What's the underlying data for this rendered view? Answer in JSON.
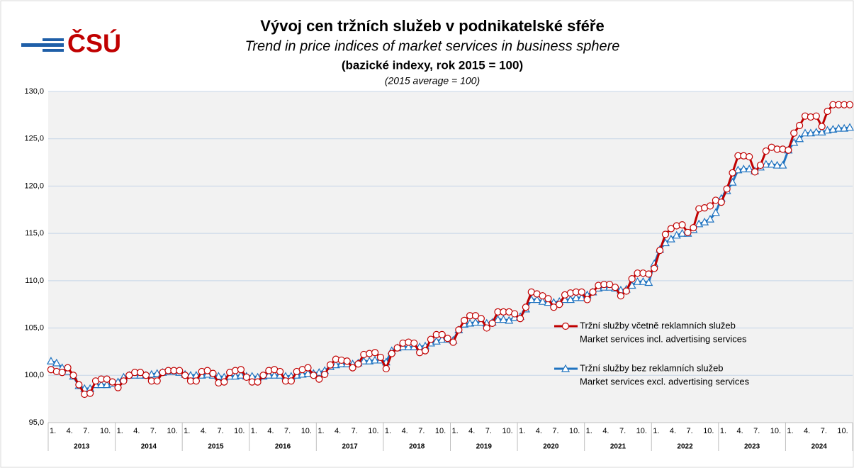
{
  "logo": "ČSÚ",
  "chart_data": {
    "type": "line",
    "title": "Vývoj cen tržních služeb v podnikatelské sféře",
    "subtitle": "Trend in price indices of market services in business sphere",
    "subtitle2": "(bazické indexy, rok 2015 = 100)",
    "note": "(2015 average = 100)",
    "years": [
      "2013",
      "2014",
      "2015",
      "2016",
      "2017",
      "2018",
      "2019",
      "2020",
      "2021",
      "2022",
      "2023",
      "2024"
    ],
    "categories": [
      "1.",
      null,
      null,
      "4.",
      null,
      null,
      "7.",
      null,
      null,
      "10.",
      null,
      null,
      "1.",
      null,
      null,
      "4.",
      null,
      null,
      "7.",
      null,
      null,
      "10.",
      null,
      null,
      "1.",
      null,
      null,
      "4.",
      null,
      null,
      "7.",
      null,
      null,
      "10.",
      null,
      null,
      "1.",
      null,
      null,
      "4.",
      null,
      null,
      "7.",
      null,
      null,
      "10.",
      null,
      null,
      "1.",
      null,
      null,
      "4.",
      null,
      null,
      "7.",
      null,
      null,
      "10.",
      null,
      null,
      "1.",
      null,
      null,
      "4.",
      null,
      null,
      "7.",
      null,
      null,
      "10.",
      null,
      null,
      "1.",
      null,
      null,
      "4.",
      null,
      null,
      "7.",
      null,
      null,
      "10.",
      null,
      null,
      "1.",
      null,
      null,
      "4.",
      null,
      null,
      "7.",
      null,
      null,
      "10.",
      null,
      null,
      "1.",
      null,
      null,
      "4.",
      null,
      null,
      "7.",
      null,
      null,
      "10.",
      null,
      null,
      "1.",
      null,
      null,
      "4.",
      null,
      null,
      "7.",
      null,
      null,
      "10.",
      null,
      null,
      "1.",
      null,
      null,
      "4.",
      null,
      null,
      "7.",
      null,
      null,
      "10.",
      null,
      null,
      "1.",
      null,
      null,
      "4.",
      null,
      null,
      "7.",
      null,
      null,
      "10.",
      null,
      null
    ],
    "series": [
      {
        "name": "Tržní služby včetně reklamních služeb",
        "subname": "Market services incl. advertising services",
        "color": "#c00000",
        "marker": "circle",
        "values": [
          100.6,
          100.4,
          100.3,
          100.8,
          100.0,
          99.0,
          98.0,
          98.1,
          99.4,
          99.6,
          99.6,
          99.3,
          98.7,
          99.4,
          100.0,
          100.3,
          100.3,
          100.0,
          99.4,
          99.4,
          100.3,
          100.5,
          100.5,
          100.5,
          100.0,
          99.4,
          99.4,
          100.4,
          100.5,
          100.2,
          99.2,
          99.3,
          100.3,
          100.5,
          100.6,
          99.8,
          99.3,
          99.3,
          100.0,
          100.5,
          100.6,
          100.4,
          99.4,
          99.4,
          100.4,
          100.6,
          100.8,
          100.0,
          99.6,
          100.1,
          101.1,
          101.7,
          101.6,
          101.5,
          100.8,
          101.2,
          102.2,
          102.3,
          102.4,
          101.9,
          100.7,
          102.3,
          102.9,
          103.4,
          103.5,
          103.4,
          102.4,
          102.6,
          103.8,
          104.3,
          104.3,
          103.9,
          103.5,
          104.8,
          105.8,
          106.3,
          106.3,
          106.0,
          105.0,
          105.5,
          106.7,
          106.7,
          106.7,
          106.5,
          106.0,
          107.2,
          108.8,
          108.6,
          108.4,
          108.1,
          107.2,
          107.5,
          108.5,
          108.7,
          108.8,
          108.8,
          108.0,
          108.8,
          109.5,
          109.6,
          109.6,
          109.3,
          108.4,
          108.9,
          110.2,
          110.8,
          110.8,
          110.7,
          111.3,
          113.2,
          114.9,
          115.5,
          115.8,
          115.9,
          115.1,
          115.6,
          117.6,
          117.7,
          117.9,
          118.5,
          118.3,
          119.7,
          121.4,
          123.2,
          123.2,
          123.1,
          121.5,
          122.2,
          123.7,
          124.1,
          123.9,
          123.9,
          123.8,
          125.6,
          126.4,
          127.4,
          127.3,
          127.4,
          126.3,
          127.9,
          128.6,
          128.6,
          128.6,
          128.6
        ]
      },
      {
        "name": "Tržní služby bez reklamních služeb",
        "subname": "Market services excl. advertising services",
        "color": "#1f73c0",
        "marker": "triangle",
        "values": [
          101.5,
          101.3,
          100.8,
          100.4,
          99.9,
          98.9,
          98.6,
          98.6,
          99.0,
          99.0,
          99.0,
          99.1,
          99.3,
          99.8,
          100.0,
          100.0,
          100.0,
          100.0,
          100.1,
          100.2,
          100.3,
          100.4,
          100.4,
          100.3,
          100.1,
          100.0,
          100.0,
          100.0,
          100.1,
          100.0,
          99.9,
          99.8,
          99.9,
          99.9,
          100.0,
          99.9,
          99.9,
          99.8,
          99.9,
          100.0,
          100.0,
          100.0,
          99.9,
          99.9,
          100.0,
          100.1,
          100.2,
          100.2,
          100.3,
          100.5,
          100.9,
          101.1,
          101.2,
          101.2,
          101.2,
          101.3,
          101.5,
          101.5,
          101.6,
          101.6,
          101.4,
          102.6,
          102.9,
          103.0,
          103.0,
          103.0,
          103.0,
          103.1,
          103.4,
          103.6,
          103.8,
          103.8,
          103.7,
          104.8,
          105.4,
          105.5,
          105.6,
          105.6,
          105.5,
          105.6,
          105.9,
          105.9,
          105.8,
          106.1,
          106.2,
          107.0,
          108.0,
          108.0,
          107.8,
          107.7,
          107.7,
          107.8,
          108.0,
          108.0,
          108.2,
          108.2,
          108.5,
          108.8,
          109.2,
          109.3,
          109.3,
          109.2,
          109.0,
          109.1,
          109.5,
          109.9,
          109.9,
          109.8,
          111.8,
          113.3,
          114.0,
          114.4,
          114.8,
          115.0,
          115.0,
          115.4,
          116.0,
          116.2,
          116.5,
          117.2,
          118.7,
          119.5,
          120.4,
          121.7,
          121.8,
          121.8,
          121.6,
          122.0,
          122.3,
          122.3,
          122.2,
          122.2,
          123.8,
          124.6,
          125.0,
          125.6,
          125.6,
          125.7,
          125.7,
          125.9,
          126.0,
          126.1,
          126.1,
          126.2
        ]
      }
    ],
    "ylim": [
      95,
      130
    ],
    "yticks": [
      {
        "value": 95,
        "label": "95,0"
      },
      {
        "value": 100,
        "label": "100,0"
      },
      {
        "value": 105,
        "label": "105,0"
      },
      {
        "value": 110,
        "label": "110,0"
      },
      {
        "value": 115,
        "label": "115,0"
      },
      {
        "value": 120,
        "label": "120,0"
      },
      {
        "value": 125,
        "label": "125,0"
      },
      {
        "value": 130,
        "label": "130,0"
      }
    ],
    "grid": true
  }
}
